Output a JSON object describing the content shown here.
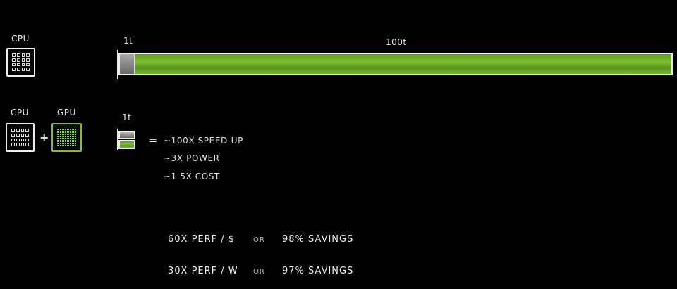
{
  "row1": {
    "cpu_label": "CPU",
    "bar_label_small": "1t",
    "bar_label_large": "100t"
  },
  "row2": {
    "cpu_label": "CPU",
    "plus": "+",
    "gpu_label": "GPU",
    "bar_label": "1t",
    "equals": "=",
    "results": [
      "~100X SPEED-UP",
      "~3X POWER",
      "~1.5X COST"
    ]
  },
  "summary": [
    {
      "perf": "60X PERF / $",
      "or": "OR",
      "savings": "98% SAVINGS"
    },
    {
      "perf": "30X PERF / W",
      "or": "OR",
      "savings": "97% SAVINGS"
    }
  ],
  "colors": {
    "accent": "#76b900",
    "background": "#000000"
  }
}
